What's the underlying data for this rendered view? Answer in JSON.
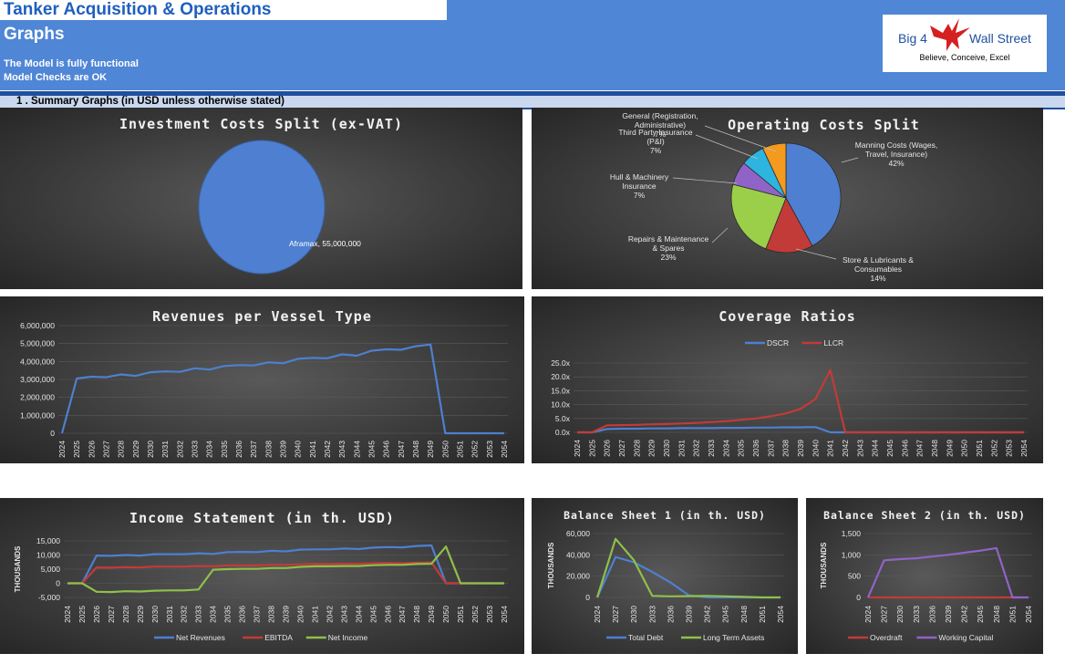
{
  "header": {
    "title": "Tanker Acquisition & Operations",
    "subtitle": "Graphs",
    "status_1": "The Model is fully functional",
    "status_2": "Model Checks are OK",
    "logo_left": "Big 4",
    "logo_right": "Wall Street",
    "logo_tagline": "Believe, Conceive, Excel"
  },
  "section": {
    "label": "1 . Summary Graphs (in USD unless otherwise stated)"
  },
  "colors": {
    "blue": "#4e7fd0",
    "red": "#c23b38",
    "green": "#8fc04a",
    "purple": "#8f64c6",
    "orange": "#f39a1f",
    "cyan": "#2db5e0",
    "header": "#4f86d6"
  },
  "chart_data": [
    {
      "id": "investment",
      "type": "pie",
      "title": "Investment Costs Split (ex-VAT)",
      "slices": [
        {
          "label": "Aframax, 55,000,000",
          "value": 55000000,
          "color": "#4e7fd0"
        }
      ]
    },
    {
      "id": "opex",
      "type": "pie",
      "title": "Operating Costs Split",
      "slices": [
        {
          "label": "Manning Costs (Wages, Travel, Insurance)",
          "pct_label": "42%",
          "value": 42,
          "color": "#4e7fd0"
        },
        {
          "label": "Store & Lubricants & Consumables",
          "pct_label": "14%",
          "value": 14,
          "color": "#c23b38"
        },
        {
          "label": "Repairs & Maintenance & Spares",
          "pct_label": "23%",
          "value": 23,
          "color": "#9bcf4a"
        },
        {
          "label": "Hull & Machinery Insurance",
          "pct_label": "7%",
          "value": 7,
          "color": "#8f64c6"
        },
        {
          "label": "Third Party Insurance (P&I)",
          "pct_label": "7%",
          "value": 7,
          "color": "#2db5e0"
        },
        {
          "label": "General (Registration, Administrative)",
          "pct_label": "7%",
          "value": 7,
          "color": "#f39a1f"
        }
      ]
    },
    {
      "id": "revenues",
      "type": "line",
      "title": "Revenues per Vessel Type",
      "x": [
        "2024",
        "2025",
        "2026",
        "2027",
        "2028",
        "2029",
        "2030",
        "2031",
        "2032",
        "2033",
        "2034",
        "2035",
        "2036",
        "2037",
        "2038",
        "2039",
        "2040",
        "2041",
        "2042",
        "2043",
        "2044",
        "2045",
        "2046",
        "2047",
        "2048",
        "2049",
        "2050",
        "2051",
        "2052",
        "2053",
        "2054"
      ],
      "ylim": [
        0,
        6000000
      ],
      "yticks": [
        "0",
        "1,000,000",
        "2,000,000",
        "3,000,000",
        "4,000,000",
        "5,000,000",
        "6,000,000"
      ],
      "series": [
        {
          "values": [
            0,
            3050000,
            3150000,
            3120000,
            3280000,
            3200000,
            3400000,
            3450000,
            3420000,
            3620000,
            3550000,
            3750000,
            3800000,
            3780000,
            3950000,
            3900000,
            4150000,
            4200000,
            4180000,
            4400000,
            4320000,
            4600000,
            4680000,
            4650000,
            4850000,
            4950000,
            0,
            0,
            0,
            0,
            0
          ],
          "color": "#4e7fd0"
        }
      ]
    },
    {
      "id": "coverage",
      "type": "line",
      "title": "Coverage Ratios",
      "x": [
        "2024",
        "2025",
        "2026",
        "2027",
        "2028",
        "2029",
        "2030",
        "2031",
        "2032",
        "2033",
        "2034",
        "2035",
        "2036",
        "2037",
        "2038",
        "2039",
        "2040",
        "2041",
        "2042",
        "2043",
        "2044",
        "2045",
        "2046",
        "2047",
        "2048",
        "2049",
        "2050",
        "2051",
        "2052",
        "2053",
        "2054"
      ],
      "ylim": [
        0,
        25
      ],
      "yticks": [
        "0.0x",
        "5.0x",
        "10.0x",
        "15.0x",
        "20.0x",
        "25.0x"
      ],
      "legend": "top",
      "series": [
        {
          "name": "DSCR",
          "values": [
            0,
            0,
            1.2,
            1.3,
            1.3,
            1.4,
            1.4,
            1.5,
            1.5,
            1.5,
            1.6,
            1.6,
            1.7,
            1.7,
            1.8,
            1.8,
            1.9,
            0,
            0,
            0,
            0,
            0,
            0,
            0,
            0,
            0,
            0,
            0,
            0,
            0,
            0
          ],
          "color": "#4e7fd0"
        },
        {
          "name": "LLCR",
          "values": [
            0,
            0,
            2.5,
            2.6,
            2.7,
            2.9,
            3.0,
            3.2,
            3.4,
            3.7,
            4.0,
            4.5,
            5.0,
            5.8,
            6.8,
            8.5,
            12,
            22.5,
            0,
            0,
            0,
            0,
            0,
            0,
            0,
            0,
            0,
            0,
            0,
            0,
            0
          ],
          "color": "#c23b38"
        }
      ]
    },
    {
      "id": "income",
      "type": "line",
      "title": "Income Statement (in th. USD)",
      "ylabel": "THOUSANDS",
      "x": [
        "2024",
        "2025",
        "2026",
        "2027",
        "2028",
        "2029",
        "2030",
        "2031",
        "2032",
        "2033",
        "2034",
        "2035",
        "2036",
        "2037",
        "2038",
        "2039",
        "2040",
        "2041",
        "2042",
        "2043",
        "2044",
        "2045",
        "2046",
        "2047",
        "2048",
        "2049",
        "2050",
        "2051",
        "2052",
        "2053",
        "2054"
      ],
      "ylim": [
        -5000,
        15000
      ],
      "yticks": [
        "-5,000",
        "0",
        "5,000",
        "10,000",
        "15,000"
      ],
      "legend": "bottom",
      "series": [
        {
          "name": "Net Revenues",
          "values": [
            0,
            0,
            9800,
            9700,
            10000,
            9800,
            10300,
            10300,
            10300,
            10600,
            10400,
            11000,
            11100,
            11000,
            11500,
            11300,
            11900,
            12000,
            12000,
            12300,
            12100,
            12600,
            12800,
            12700,
            13200,
            13400,
            0,
            0,
            0,
            0,
            0
          ],
          "color": "#4e7fd0"
        },
        {
          "name": "EBITDA",
          "values": [
            0,
            0,
            5600,
            5500,
            5700,
            5600,
            5900,
            5900,
            5900,
            6100,
            6000,
            6300,
            6300,
            6300,
            6500,
            6500,
            6700,
            6800,
            6800,
            6900,
            6900,
            7100,
            7200,
            7100,
            7300,
            7400,
            0,
            0,
            0,
            0,
            0
          ],
          "color": "#c23b38"
        },
        {
          "name": "Net Income",
          "values": [
            0,
            0,
            -3000,
            -3100,
            -2800,
            -2900,
            -2600,
            -2500,
            -2500,
            -2200,
            4800,
            5000,
            5100,
            5100,
            5400,
            5400,
            5800,
            6000,
            6000,
            6100,
            6100,
            6400,
            6500,
            6500,
            6800,
            6900,
            13000,
            0,
            0,
            0,
            0
          ],
          "color": "#8fc04a"
        }
      ]
    },
    {
      "id": "balance1",
      "type": "line",
      "title": "Balance Sheet 1 (in th. USD)",
      "ylabel": "THOUSANDS",
      "x": [
        "2024",
        "2027",
        "2030",
        "2033",
        "2036",
        "2039",
        "2042",
        "2045",
        "2048",
        "2051",
        "2054"
      ],
      "ylim": [
        0,
        60000
      ],
      "yticks": [
        "0",
        "20,000",
        "40,000",
        "60,000"
      ],
      "legend": "bottom",
      "series": [
        {
          "name": "Total Debt",
          "values": [
            0,
            38000,
            33000,
            24000,
            14000,
            2000,
            0,
            0,
            0,
            0,
            0
          ],
          "color": "#4e7fd0"
        },
        {
          "name": "Long Term Assets",
          "values": [
            0,
            55000,
            35000,
            1500,
            1000,
            1200,
            1500,
            1000,
            500,
            0,
            0
          ],
          "color": "#8fc04a"
        }
      ]
    },
    {
      "id": "balance2",
      "type": "line",
      "title": "Balance Sheet 2 (in th. USD)",
      "ylabel": "THOUSANDS",
      "x": [
        "2024",
        "2027",
        "2030",
        "2033",
        "2036",
        "2039",
        "2042",
        "2045",
        "2048",
        "2051",
        "2054"
      ],
      "ylim": [
        0,
        1500
      ],
      "yticks": [
        "0",
        "500",
        "1,000",
        "1,500"
      ],
      "legend": "bottom",
      "series": [
        {
          "name": "Overdraft",
          "values": [
            0,
            0,
            0,
            0,
            0,
            0,
            0,
            0,
            0,
            0,
            0
          ],
          "color": "#c23b38"
        },
        {
          "name": "Working Capital",
          "values": [
            0,
            870,
            900,
            920,
            960,
            1000,
            1050,
            1100,
            1160,
            0,
            0
          ],
          "color": "#8f64c6"
        }
      ]
    }
  ]
}
